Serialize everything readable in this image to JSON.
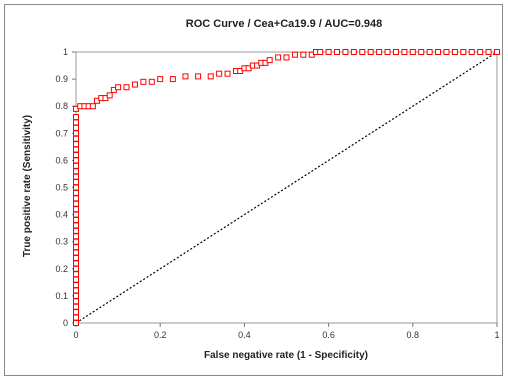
{
  "chart_data": {
    "type": "scatter",
    "title": "ROC Curve / Cea+Ca19.9 / AUC=0.948",
    "xlabel": "False negative rate (1 - Specificity)",
    "ylabel": "True positive rate (Sensitivity)",
    "xlim": [
      0,
      1
    ],
    "ylim": [
      0,
      1
    ],
    "x_ticks": [
      "0",
      "0.2",
      "0.4",
      "0.6",
      "0.8",
      "1"
    ],
    "y_ticks": [
      "0",
      "0.1",
      "0.2",
      "0.3",
      "0.4",
      "0.5",
      "0.6",
      "0.7",
      "0.8",
      "0.9",
      "1"
    ],
    "grid": false,
    "legend": "none",
    "colors": {
      "roc": "#ff0000",
      "diagonal": "#000000"
    },
    "diagonal": {
      "x": [
        0,
        1
      ],
      "y": [
        0,
        1
      ],
      "style": "dashed"
    },
    "series": [
      {
        "x": [
          0,
          0,
          0,
          0,
          0,
          0,
          0,
          0,
          0,
          0,
          0,
          0,
          0,
          0,
          0,
          0,
          0,
          0,
          0,
          0,
          0,
          0,
          0,
          0,
          0,
          0,
          0,
          0,
          0,
          0,
          0,
          0,
          0,
          0,
          0,
          0,
          0,
          0,
          0,
          0,
          0.01,
          0.02,
          0.03,
          0.04,
          0.05,
          0.06,
          0.07,
          0.08,
          0.09,
          0.1,
          0.12,
          0.14,
          0.16,
          0.18,
          0.2,
          0.23,
          0.26,
          0.29,
          0.32,
          0.34,
          0.36,
          0.38,
          0.39,
          0.4,
          0.41,
          0.42,
          0.43,
          0.44,
          0.45,
          0.46,
          0.48,
          0.5,
          0.52,
          0.54,
          0.56,
          0.57,
          0.58,
          0.6,
          0.62,
          0.64,
          0.66,
          0.68,
          0.7,
          0.72,
          0.74,
          0.76,
          0.78,
          0.8,
          0.82,
          0.84,
          0.86,
          0.88,
          0.9,
          0.92,
          0.94,
          0.96,
          0.98,
          1.0
        ],
        "y": [
          0,
          0.02,
          0.04,
          0.06,
          0.08,
          0.1,
          0.12,
          0.14,
          0.16,
          0.18,
          0.2,
          0.22,
          0.24,
          0.26,
          0.28,
          0.3,
          0.32,
          0.34,
          0.36,
          0.38,
          0.4,
          0.42,
          0.44,
          0.46,
          0.48,
          0.5,
          0.52,
          0.54,
          0.56,
          0.58,
          0.6,
          0.62,
          0.64,
          0.66,
          0.68,
          0.7,
          0.72,
          0.74,
          0.76,
          0.79,
          0.8,
          0.8,
          0.8,
          0.8,
          0.82,
          0.83,
          0.83,
          0.84,
          0.86,
          0.87,
          0.87,
          0.88,
          0.89,
          0.89,
          0.9,
          0.9,
          0.91,
          0.91,
          0.91,
          0.92,
          0.92,
          0.93,
          0.93,
          0.94,
          0.94,
          0.95,
          0.95,
          0.96,
          0.96,
          0.97,
          0.98,
          0.98,
          0.99,
          0.99,
          0.99,
          1,
          1,
          1,
          1,
          1,
          1,
          1,
          1,
          1,
          1,
          1,
          1,
          1,
          1,
          1,
          1,
          1,
          1,
          1,
          1,
          1,
          1,
          1
        ]
      }
    ]
  }
}
